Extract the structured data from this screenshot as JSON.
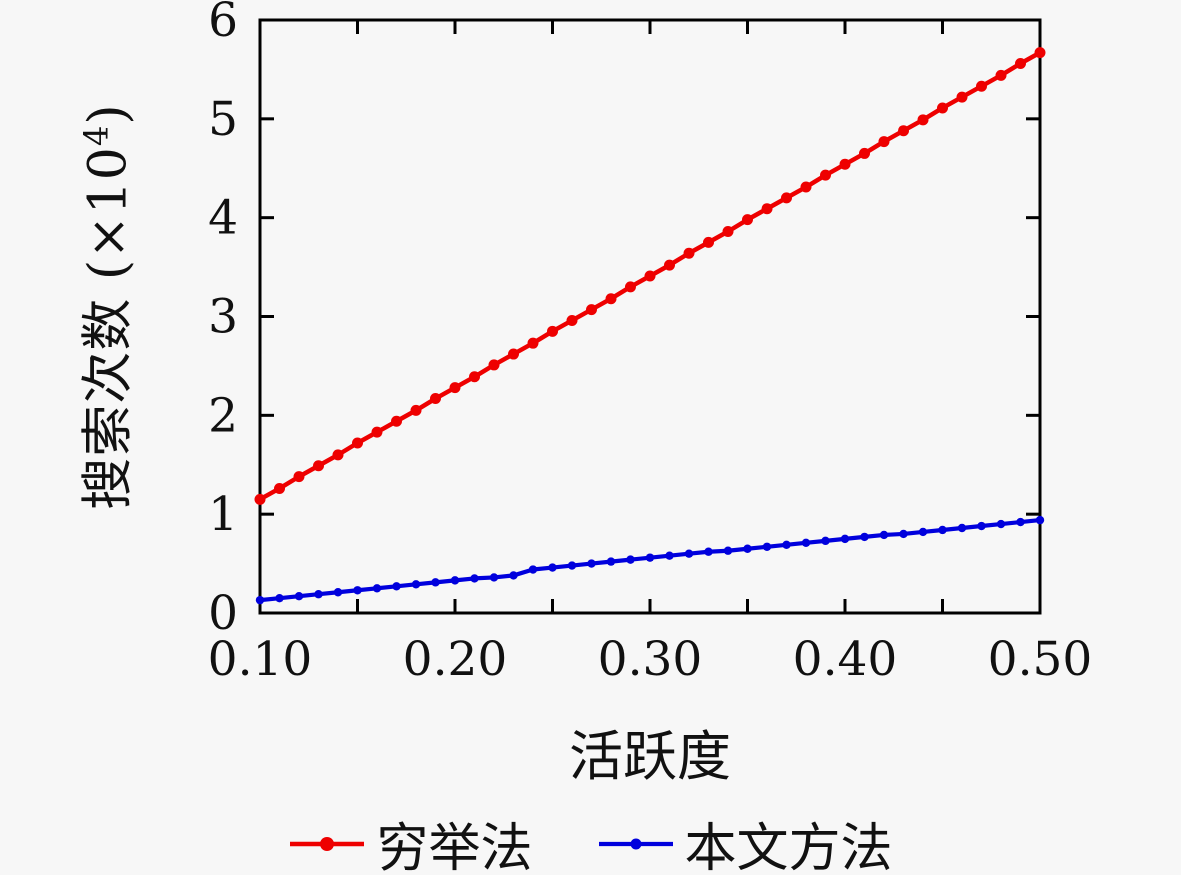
{
  "figure": {
    "background": "#f7f7f7",
    "x_axis": {
      "title": "活跃度",
      "min": 0.1,
      "max": 0.5
    },
    "y_axis": {
      "title_full": "搜索次数 (×10⁴)",
      "title_main": "搜索次数 (×10",
      "title_sup": "4",
      "title_close": ")",
      "min": 0,
      "max": 6
    }
  },
  "legend": {
    "entries": [
      {
        "label": "穷举法",
        "color": "#ee0000"
      },
      {
        "label": "本文方法",
        "color": "#0000dd"
      }
    ]
  },
  "chart_data": {
    "type": "line",
    "title": "",
    "xlabel": "活跃度",
    "ylabel": "搜索次数 (×10⁴)",
    "xlim": [
      0.1,
      0.5
    ],
    "ylim": [
      0,
      6
    ],
    "grid": false,
    "legend_position": "bottom",
    "axis_color": "#000000",
    "x_ticks": {
      "values": [
        0.1,
        0.15,
        0.2,
        0.25,
        0.3,
        0.35,
        0.4,
        0.45,
        0.5
      ],
      "labels": [
        "0.10",
        "",
        "0.20",
        "",
        "0.30",
        "",
        "0.40",
        "",
        "0.50"
      ]
    },
    "y_ticks": {
      "values": [
        0,
        1,
        2,
        3,
        4,
        5,
        6
      ],
      "labels": [
        "0",
        "1",
        "2",
        "3",
        "4",
        "5",
        "6"
      ]
    },
    "x": [
      0.1,
      0.11,
      0.12,
      0.13,
      0.14,
      0.15,
      0.16,
      0.17,
      0.18,
      0.19,
      0.2,
      0.21,
      0.22,
      0.23,
      0.24,
      0.25,
      0.26,
      0.27,
      0.28,
      0.29,
      0.3,
      0.31,
      0.32,
      0.33,
      0.34,
      0.35,
      0.36,
      0.37,
      0.38,
      0.39,
      0.4,
      0.41,
      0.42,
      0.43,
      0.44,
      0.45,
      0.46,
      0.47,
      0.48,
      0.49,
      0.5
    ],
    "series": [
      {
        "name": "穷举法",
        "color": "#ee0000",
        "marker_radius": 5.5,
        "line_width": 4.5,
        "values": [
          1.15,
          1.26,
          1.38,
          1.49,
          1.6,
          1.72,
          1.83,
          1.94,
          2.05,
          2.17,
          2.28,
          2.39,
          2.51,
          2.62,
          2.73,
          2.85,
          2.96,
          3.07,
          3.18,
          3.3,
          3.41,
          3.52,
          3.64,
          3.75,
          3.86,
          3.98,
          4.09,
          4.2,
          4.31,
          4.43,
          4.54,
          4.65,
          4.77,
          4.88,
          4.99,
          5.11,
          5.22,
          5.33,
          5.44,
          5.56,
          5.67
        ]
      },
      {
        "name": "本文方法",
        "color": "#0000dd",
        "marker_radius": 4.2,
        "line_width": 4.2,
        "values": [
          0.13,
          0.15,
          0.17,
          0.19,
          0.21,
          0.23,
          0.25,
          0.27,
          0.29,
          0.31,
          0.33,
          0.35,
          0.36,
          0.38,
          0.44,
          0.46,
          0.48,
          0.5,
          0.52,
          0.54,
          0.56,
          0.58,
          0.6,
          0.62,
          0.63,
          0.65,
          0.67,
          0.69,
          0.71,
          0.73,
          0.75,
          0.77,
          0.79,
          0.8,
          0.82,
          0.84,
          0.86,
          0.88,
          0.9,
          0.92,
          0.94
        ]
      }
    ]
  }
}
